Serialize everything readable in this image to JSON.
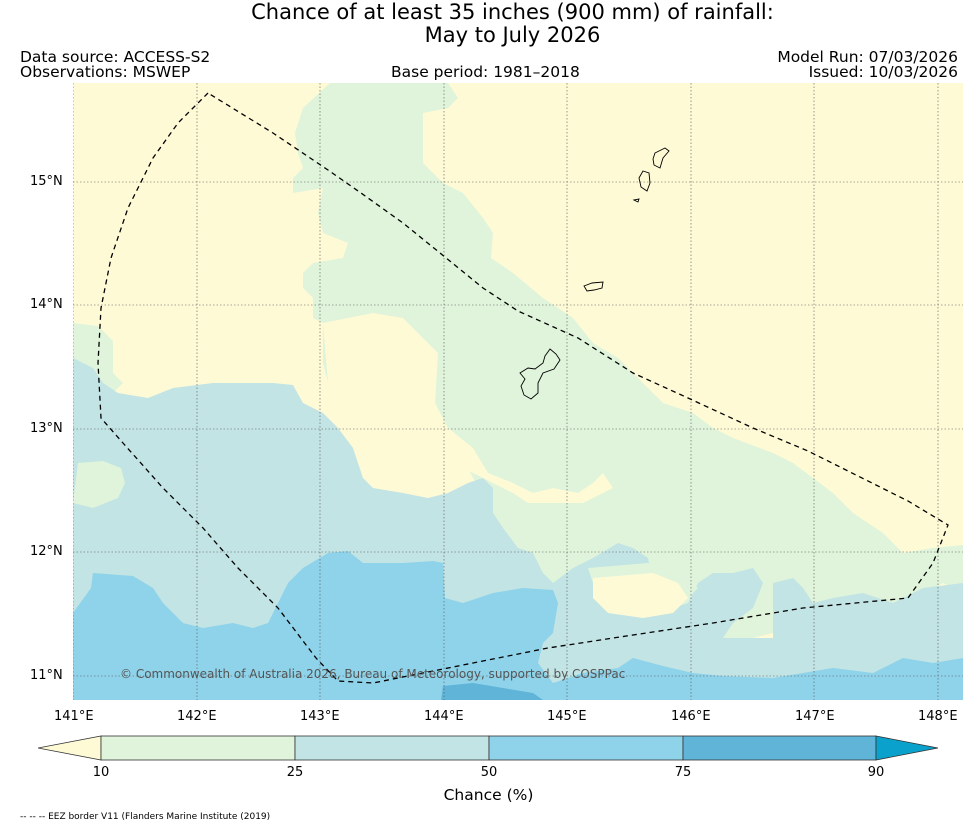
{
  "title": {
    "line1": "Chance of at least 35 inches (900  mm) of rainfall:",
    "line2": "May to July 2026"
  },
  "meta": {
    "data_source": "Data source: ACCESS-S2",
    "observations": "Observations: MSWEP",
    "base_period": "Base period: 1981–2018",
    "model_run": "Model Run: 07/03/2026",
    "issued": "Issued: 10/03/2026"
  },
  "map": {
    "lon_ticks": [
      "141°E",
      "142°E",
      "143°E",
      "144°E",
      "145°E",
      "146°E",
      "147°E",
      "148°E"
    ],
    "lat_ticks": [
      "15°N",
      "14°N",
      "13°N",
      "12°N",
      "11°N"
    ],
    "copyright": "© Commonwealth of Australia 2026, Bureau of Meteorology, supported by COSPPac",
    "colors": {
      "lt10": "#fffad6",
      "c10_25": "#dff4da",
      "c25_50": "#c2e4e4",
      "c50_75": "#8fd3ea",
      "c75_90": "#5fb4d8",
      "gt90": "#0aa2cc"
    }
  },
  "colorbar": {
    "ticks": [
      "10",
      "25",
      "50",
      "75",
      "90"
    ],
    "label": "Chance (%)"
  },
  "footnote": "-- -- -- EEZ border V11 (Flanders Marine Institute (2019)"
}
